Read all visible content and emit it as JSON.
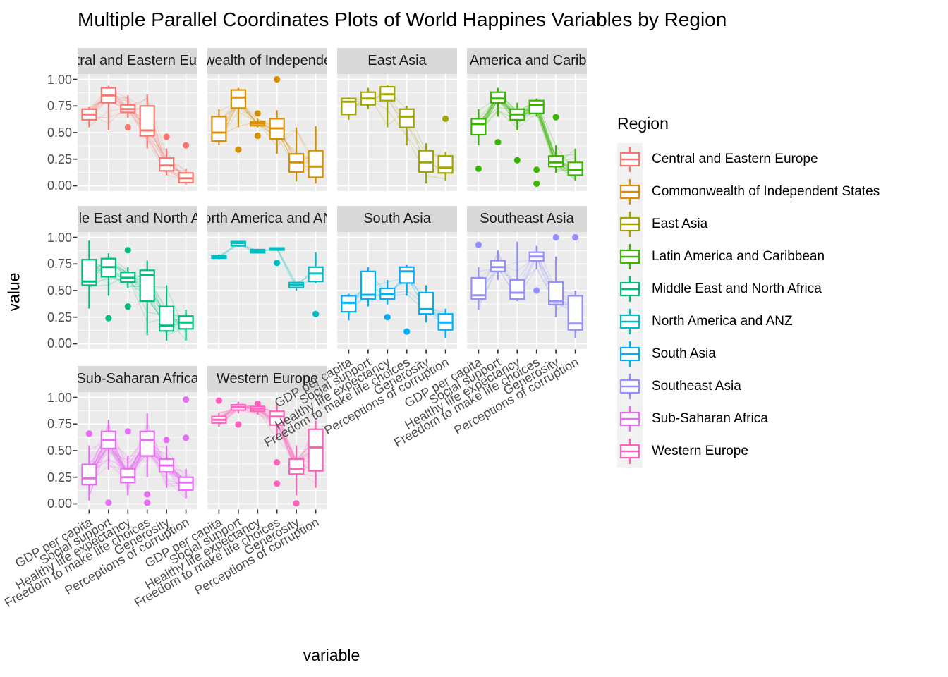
{
  "title": "Multiple Parallel Coordinates Plots of World Happines Variables by Region",
  "axes": {
    "x_title": "variable",
    "y_title": "value",
    "y_tick_labels": [
      "1.00",
      "0.75",
      "0.50",
      "0.25",
      "0.00"
    ],
    "x_categories": [
      "GDP per capita",
      "Social support",
      "Healthy life expectancy",
      "Freedom to make life choices",
      "Generosity",
      "Perceptions of corruption"
    ]
  },
  "legend": {
    "title": "Region"
  },
  "chart_data": {
    "type": "boxplot-parallel-coordinates",
    "facet_layout": "4 columns x 3 rows, 10 facets",
    "ylim": [
      0,
      1
    ],
    "grid": "major+minor horizontal, major vertical",
    "x_categories": [
      "GDP per capita",
      "Social support",
      "Healthy life expectancy",
      "Freedom to make life choices",
      "Generosity",
      "Perceptions of corruption"
    ],
    "facets": [
      {
        "region": "Central and Eastern Europe",
        "color": "#F8766D",
        "n_lines": 17,
        "boxes": [
          {
            "low": 0.55,
            "q1": 0.62,
            "median": 0.67,
            "q3": 0.72,
            "high": 0.74,
            "outliers": []
          },
          {
            "low": 0.52,
            "q1": 0.78,
            "median": 0.85,
            "q3": 0.92,
            "high": 0.94,
            "outliers": []
          },
          {
            "low": 0.64,
            "q1": 0.69,
            "median": 0.72,
            "q3": 0.76,
            "high": 0.85,
            "outliers": [
              0.55
            ]
          },
          {
            "low": 0.35,
            "q1": 0.47,
            "median": 0.52,
            "q3": 0.75,
            "high": 0.86,
            "outliers": []
          },
          {
            "low": 0.1,
            "q1": 0.14,
            "median": 0.19,
            "q3": 0.26,
            "high": 0.35,
            "outliers": [
              0.46
            ]
          },
          {
            "low": 0.01,
            "q1": 0.03,
            "median": 0.07,
            "q3": 0.12,
            "high": 0.16,
            "outliers": [
              0.38
            ]
          }
        ]
      },
      {
        "region": "Commonwealth of Independent States",
        "color": "#D89000",
        "n_lines": 12,
        "boxes": [
          {
            "low": 0.38,
            "q1": 0.42,
            "median": 0.5,
            "q3": 0.65,
            "high": 0.72,
            "outliers": []
          },
          {
            "low": 0.55,
            "q1": 0.73,
            "median": 0.83,
            "q3": 0.9,
            "high": 0.92,
            "outliers": [
              0.34
            ]
          },
          {
            "low": 0.55,
            "q1": 0.565,
            "median": 0.585,
            "q3": 0.6,
            "high": 0.63,
            "outliers": [
              0.68,
              0.47
            ]
          },
          {
            "low": 0.3,
            "q1": 0.44,
            "median": 0.54,
            "q3": 0.63,
            "high": 0.71,
            "outliers": [
              1.0
            ]
          },
          {
            "low": 0.04,
            "q1": 0.13,
            "median": 0.22,
            "q3": 0.3,
            "high": 0.55,
            "outliers": []
          },
          {
            "low": 0.02,
            "q1": 0.08,
            "median": 0.18,
            "q3": 0.33,
            "high": 0.56,
            "outliers": []
          }
        ]
      },
      {
        "region": "East Asia",
        "color": "#A3A500",
        "n_lines": 6,
        "boxes": [
          {
            "low": 0.62,
            "q1": 0.67,
            "median": 0.79,
            "q3": 0.82,
            "high": 0.83,
            "outliers": []
          },
          {
            "low": 0.72,
            "q1": 0.76,
            "median": 0.82,
            "q3": 0.88,
            "high": 0.92,
            "outliers": []
          },
          {
            "low": 0.55,
            "q1": 0.8,
            "median": 0.86,
            "q3": 0.93,
            "high": 0.95,
            "outliers": []
          },
          {
            "low": 0.38,
            "q1": 0.55,
            "median": 0.65,
            "q3": 0.72,
            "high": 0.75,
            "outliers": []
          },
          {
            "low": 0.02,
            "q1": 0.13,
            "median": 0.22,
            "q3": 0.33,
            "high": 0.4,
            "outliers": []
          },
          {
            "low": 0.05,
            "q1": 0.12,
            "median": 0.17,
            "q3": 0.28,
            "high": 0.32,
            "outliers": [
              0.63
            ]
          }
        ]
      },
      {
        "region": "Latin America and Caribbean",
        "color": "#39B600",
        "n_lines": 21,
        "boxes": [
          {
            "low": 0.38,
            "q1": 0.48,
            "median": 0.58,
            "q3": 0.63,
            "high": 0.72,
            "outliers": [
              0.16
            ]
          },
          {
            "low": 0.65,
            "q1": 0.78,
            "median": 0.82,
            "q3": 0.88,
            "high": 0.92,
            "outliers": [
              0.41
            ]
          },
          {
            "low": 0.52,
            "q1": 0.62,
            "median": 0.67,
            "q3": 0.72,
            "high": 0.78,
            "outliers": [
              0.24
            ]
          },
          {
            "low": 0.65,
            "q1": 0.68,
            "median": 0.76,
            "q3": 0.8,
            "high": 0.82,
            "outliers": [
              0.15,
              0.02
            ]
          },
          {
            "low": 0.12,
            "q1": 0.18,
            "median": 0.22,
            "q3": 0.28,
            "high": 0.38,
            "outliers": [
              0.645
            ]
          },
          {
            "low": 0.05,
            "q1": 0.1,
            "median": 0.15,
            "q3": 0.22,
            "high": 0.35,
            "outliers": []
          }
        ]
      },
      {
        "region": "Middle East and North Africa",
        "color": "#00BF7D",
        "n_lines": 17,
        "boxes": [
          {
            "low": 0.33,
            "q1": 0.55,
            "median": 0.585,
            "q3": 0.79,
            "high": 0.97,
            "outliers": []
          },
          {
            "low": 0.45,
            "q1": 0.63,
            "median": 0.72,
            "q3": 0.8,
            "high": 0.85,
            "outliers": [
              0.24
            ]
          },
          {
            "low": 0.52,
            "q1": 0.58,
            "median": 0.62,
            "q3": 0.67,
            "high": 0.72,
            "outliers": [
              0.88,
              0.35
            ]
          },
          {
            "low": 0.08,
            "q1": 0.4,
            "median": 0.645,
            "q3": 0.69,
            "high": 0.78,
            "outliers": []
          },
          {
            "low": 0.03,
            "q1": 0.12,
            "median": 0.17,
            "q3": 0.35,
            "high": 0.55,
            "outliers": []
          },
          {
            "low": 0.03,
            "q1": 0.14,
            "median": 0.2,
            "q3": 0.26,
            "high": 0.32,
            "outliers": []
          }
        ]
      },
      {
        "region": "North America and ANZ",
        "color": "#00BFC4",
        "n_lines": 4,
        "boxes": [
          {
            "low": 0.795,
            "q1": 0.805,
            "median": 0.815,
            "q3": 0.825,
            "high": 0.84,
            "outliers": []
          },
          {
            "low": 0.91,
            "q1": 0.92,
            "median": 0.945,
            "q3": 0.96,
            "high": 0.965,
            "outliers": []
          },
          {
            "low": 0.85,
            "q1": 0.855,
            "median": 0.87,
            "q3": 0.885,
            "high": 0.89,
            "outliers": []
          },
          {
            "low": 0.875,
            "q1": 0.88,
            "median": 0.885,
            "q3": 0.9,
            "high": 0.905,
            "outliers": [
              0.76
            ]
          },
          {
            "low": 0.5,
            "q1": 0.53,
            "median": 0.555,
            "q3": 0.575,
            "high": 0.58,
            "outliers": []
          },
          {
            "low": 0.57,
            "q1": 0.585,
            "median": 0.66,
            "q3": 0.72,
            "high": 0.86,
            "outliers": [
              0.28
            ]
          }
        ]
      },
      {
        "region": "South Asia",
        "color": "#00B0F6",
        "n_lines": 7,
        "boxes": [
          {
            "low": 0.22,
            "q1": 0.3,
            "median": 0.385,
            "q3": 0.45,
            "high": 0.47,
            "outliers": []
          },
          {
            "low": 0.35,
            "q1": 0.42,
            "median": 0.46,
            "q3": 0.68,
            "high": 0.72,
            "outliers": []
          },
          {
            "low": 0.37,
            "q1": 0.42,
            "median": 0.465,
            "q3": 0.52,
            "high": 0.6,
            "outliers": [
              0.25
            ]
          },
          {
            "low": 0.45,
            "q1": 0.57,
            "median": 0.68,
            "q3": 0.72,
            "high": 0.74,
            "outliers": [
              0.115
            ]
          },
          {
            "low": 0.2,
            "q1": 0.28,
            "median": 0.325,
            "q3": 0.48,
            "high": 0.55,
            "outliers": []
          },
          {
            "low": 0.05,
            "q1": 0.13,
            "median": 0.2,
            "q3": 0.28,
            "high": 0.33,
            "outliers": []
          }
        ]
      },
      {
        "region": "Southeast Asia",
        "color": "#9590FF",
        "n_lines": 9,
        "boxes": [
          {
            "low": 0.32,
            "q1": 0.42,
            "median": 0.455,
            "q3": 0.62,
            "high": 0.72,
            "outliers": [
              0.93
            ]
          },
          {
            "low": 0.6,
            "q1": 0.68,
            "median": 0.72,
            "q3": 0.78,
            "high": 0.88,
            "outliers": []
          },
          {
            "low": 0.4,
            "q1": 0.42,
            "median": 0.48,
            "q3": 0.6,
            "high": 0.96,
            "outliers": []
          },
          {
            "low": 0.7,
            "q1": 0.78,
            "median": 0.82,
            "q3": 0.86,
            "high": 0.92,
            "outliers": [
              0.5
            ]
          },
          {
            "low": 0.25,
            "q1": 0.37,
            "median": 0.4,
            "q3": 0.58,
            "high": 0.82,
            "outliers": [
              1.0
            ]
          },
          {
            "low": 0.05,
            "q1": 0.13,
            "median": 0.19,
            "q3": 0.45,
            "high": 0.5,
            "outliers": [
              1.0
            ]
          }
        ]
      },
      {
        "region": "Sub-Saharan Africa",
        "color": "#E76BF3",
        "n_lines": 36,
        "boxes": [
          {
            "low": 0.03,
            "q1": 0.18,
            "median": 0.24,
            "q3": 0.37,
            "high": 0.55,
            "outliers": [
              0.66
            ]
          },
          {
            "low": 0.32,
            "q1": 0.52,
            "median": 0.6,
            "q3": 0.68,
            "high": 0.79,
            "outliers": [
              0.01
            ]
          },
          {
            "low": 0.08,
            "q1": 0.2,
            "median": 0.25,
            "q3": 0.33,
            "high": 0.45,
            "outliers": [
              0.68
            ]
          },
          {
            "low": 0.25,
            "q1": 0.45,
            "median": 0.6,
            "q3": 0.68,
            "high": 0.85,
            "outliers": [
              0.09,
              0.01
            ]
          },
          {
            "low": 0.15,
            "q1": 0.3,
            "median": 0.36,
            "q3": 0.42,
            "high": 0.55,
            "outliers": [
              0.6
            ]
          },
          {
            "low": 0.05,
            "q1": 0.13,
            "median": 0.2,
            "q3": 0.25,
            "high": 0.33,
            "outliers": [
              0.98,
              0.62
            ]
          }
        ]
      },
      {
        "region": "Western Europe",
        "color": "#FF62BC",
        "n_lines": 21,
        "boxes": [
          {
            "low": 0.72,
            "q1": 0.76,
            "median": 0.79,
            "q3": 0.82,
            "high": 0.86,
            "outliers": [
              0.97
            ]
          },
          {
            "low": 0.85,
            "q1": 0.88,
            "median": 0.91,
            "q3": 0.93,
            "high": 0.96,
            "outliers": [
              0.745
            ]
          },
          {
            "low": 0.84,
            "q1": 0.87,
            "median": 0.895,
            "q3": 0.915,
            "high": 0.92,
            "outliers": [
              0.94
            ]
          },
          {
            "low": 0.6,
            "q1": 0.74,
            "median": 0.82,
            "q3": 0.87,
            "high": 0.93,
            "outliers": [
              0.39,
              0.19
            ]
          },
          {
            "low": 0.08,
            "q1": 0.28,
            "median": 0.33,
            "q3": 0.42,
            "high": 0.55,
            "outliers": [
              0.005
            ]
          },
          {
            "low": 0.15,
            "q1": 0.31,
            "median": 0.53,
            "q3": 0.7,
            "high": 0.78,
            "outliers": []
          }
        ]
      }
    ]
  }
}
